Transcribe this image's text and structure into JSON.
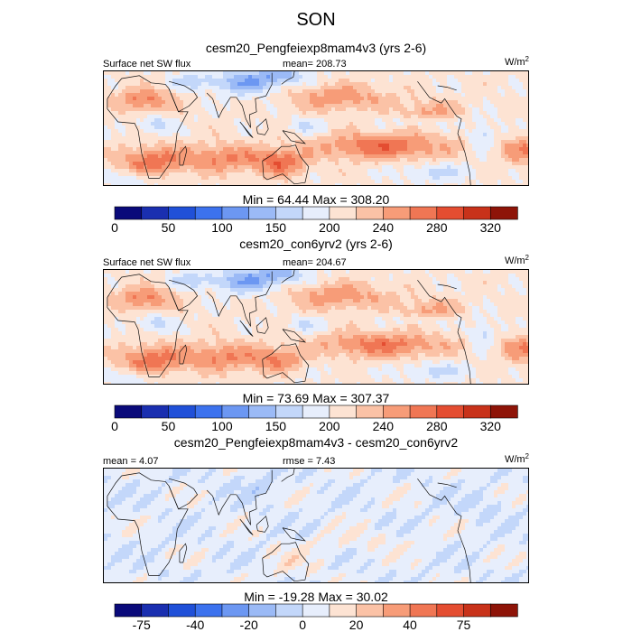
{
  "figure": {
    "title": "SON"
  },
  "chart_data": [
    {
      "type": "heatmap",
      "title": "cesm20_Pengfeiexp8mam4v3 (yrs 2-6)",
      "left_label": "Surface net SW flux",
      "mean_label": "mean= 208.73",
      "units": "W/m",
      "units_sup": "2",
      "range_label": "Min =  64.44 Max = 308.20",
      "min": 64.44,
      "max": 308.2,
      "colorbar": {
        "levels": [
          0,
          25,
          50,
          75,
          100,
          125,
          150,
          175,
          200,
          220,
          240,
          260,
          280,
          300,
          320
        ],
        "tick_labels": [
          "0",
          "50",
          "100",
          "150",
          "200",
          "240",
          "280",
          "320"
        ],
        "colors": [
          "#0a0a7a",
          "#1a2fb0",
          "#2050d8",
          "#3c72ee",
          "#6c97f2",
          "#9bbaf6",
          "#c3d7fa",
          "#e7eefc",
          "#fde3d3",
          "#fbc2a6",
          "#f79c78",
          "#f07654",
          "#e44d31",
          "#c8321a",
          "#8e1408"
        ]
      }
    },
    {
      "type": "heatmap",
      "title": "cesm20_con6yrv2 (yrs 2-6)",
      "left_label": "Surface net SW flux",
      "mean_label": "mean= 204.67",
      "units": "W/m",
      "units_sup": "2",
      "range_label": "Min =  73.69 Max = 307.37",
      "min": 73.69,
      "max": 307.37,
      "colorbar": {
        "levels": [
          0,
          25,
          50,
          75,
          100,
          125,
          150,
          175,
          200,
          220,
          240,
          260,
          280,
          300,
          320
        ],
        "tick_labels": [
          "0",
          "50",
          "100",
          "150",
          "200",
          "240",
          "280",
          "320"
        ],
        "colors": [
          "#0a0a7a",
          "#1a2fb0",
          "#2050d8",
          "#3c72ee",
          "#6c97f2",
          "#9bbaf6",
          "#c3d7fa",
          "#e7eefc",
          "#fde3d3",
          "#fbc2a6",
          "#f79c78",
          "#f07654",
          "#e44d31",
          "#c8321a",
          "#8e1408"
        ]
      }
    },
    {
      "type": "heatmap",
      "title": "cesm20_Pengfeiexp8mam4v3 - cesm20_con6yrv2",
      "left_label": "mean =   4.07",
      "mean_label": "rmse =   7.43",
      "units": "W/m",
      "units_sup": "2",
      "range_label": "Min = -19.28 Max =  30.02",
      "min": -19.28,
      "max": 30.02,
      "colorbar": {
        "levels": [
          -100,
          -75,
          -60,
          -40,
          -30,
          -20,
          -10,
          0,
          10,
          20,
          30,
          40,
          60,
          75,
          100
        ],
        "tick_labels": [
          "-75",
          "-40",
          "-20",
          "0",
          "20",
          "40",
          "75"
        ],
        "colors": [
          "#0a0a7a",
          "#1a2fb0",
          "#2050d8",
          "#3c72ee",
          "#6c97f2",
          "#9bbaf6",
          "#c3d7fa",
          "#e7eefc",
          "#fde3d3",
          "#fbc2a6",
          "#f79c78",
          "#f07654",
          "#e44d31",
          "#c8321a",
          "#8e1408"
        ]
      }
    }
  ]
}
